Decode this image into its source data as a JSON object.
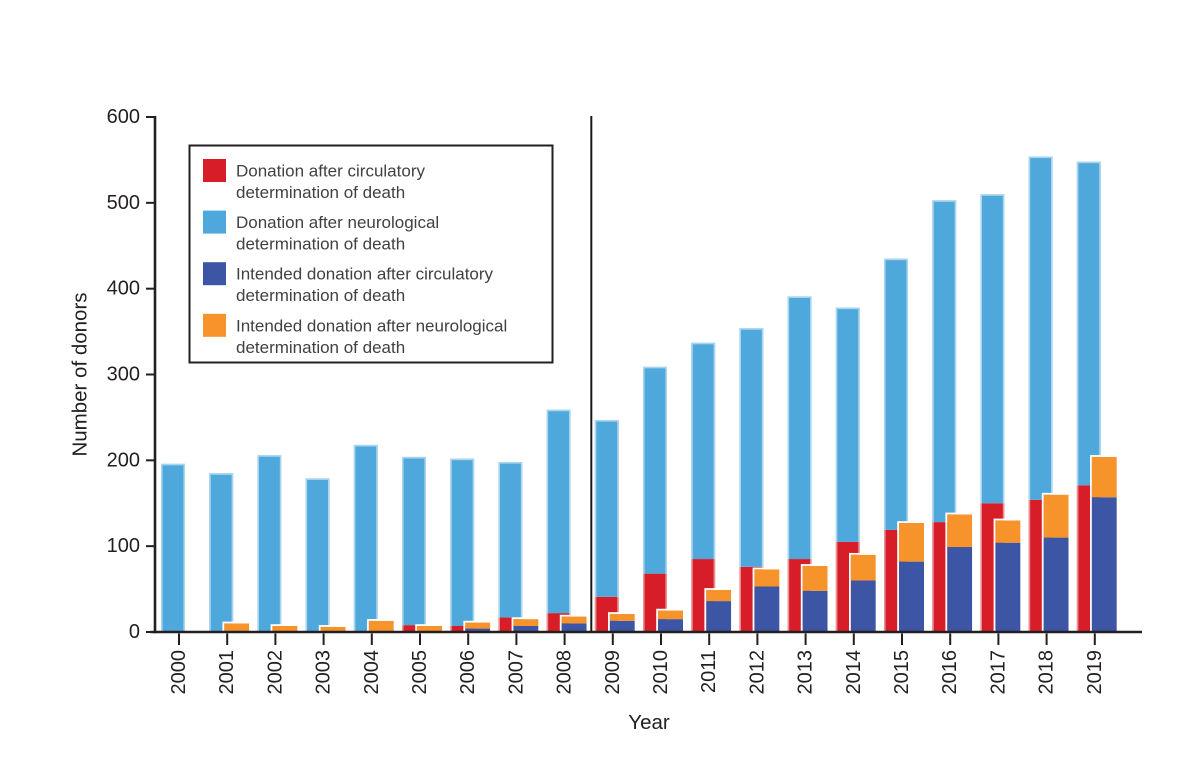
{
  "figure": {
    "background": "#ffffff",
    "text_color": "#231f20",
    "legend_text_color": "#414042"
  },
  "chart_data": {
    "type": "bar",
    "stacked": true,
    "grouped": true,
    "title": "",
    "xlabel": "Year",
    "ylabel": "Number of donors",
    "ylim": [
      0,
      600
    ],
    "yticks": [
      0,
      100,
      200,
      300,
      400,
      500,
      600
    ],
    "grid": false,
    "legend_position": "upper-left-inside",
    "categories": [
      "2000",
      "2001",
      "2002",
      "2003",
      "2004",
      "2005",
      "2006",
      "2007",
      "2008",
      "2009",
      "2010",
      "2011",
      "2012",
      "2013",
      "2014",
      "2015",
      "2016",
      "2017",
      "2018",
      "2019"
    ],
    "separator_after_year": "2008",
    "groups": [
      {
        "name": "actual-donation-bar",
        "series": [
          {
            "name": "Donation after circulatory determination of death",
            "color": "#d71e28",
            "values": [
              0,
              0,
              0,
              0,
              0,
              8,
              7,
              17,
              22,
              41,
              68,
              85,
              76,
              85,
              105,
              119,
              128,
              150,
              154,
              171
            ]
          },
          {
            "name": "Donation after neurological determination of death",
            "color": "#4fa8dc",
            "values": [
              196,
              185,
              206,
              179,
              218,
              196,
              195,
              181,
              237,
              206,
              241,
              252,
              278,
              306,
              273,
              316,
              375,
              360,
              400,
              377
            ]
          }
        ]
      },
      {
        "name": "intended-donation-bar",
        "series": [
          {
            "name": "Intended donation after circulatory determination of death",
            "color": "#3d55a5",
            "values": [
              0,
              0,
              0,
              0,
              0,
              0,
              4,
              7,
              10,
              13,
              15,
              36,
              53,
              48,
              60,
              82,
              99,
              104,
              110,
              157
            ]
          },
          {
            "name": "Intended donation after neurological determination of death",
            "color": "#f6932b",
            "values": [
              0,
              10,
              7,
              6,
              13,
              7,
              7,
              8,
              8,
              8,
              10,
              13,
              20,
              29,
              30,
              45,
              38,
              26,
              50,
              47
            ]
          }
        ]
      }
    ],
    "legend": [
      {
        "color": "#d71e28",
        "lines": [
          "Donation after circulatory",
          "determination of death"
        ]
      },
      {
        "color": "#4fa8dc",
        "lines": [
          "Donation after neurological",
          "determination of death"
        ]
      },
      {
        "color": "#3d55a5",
        "lines": [
          "Intended donation after circulatory",
          "determination of death"
        ]
      },
      {
        "color": "#f6932b",
        "lines": [
          "Intended donation after neurological",
          "determination of death"
        ]
      }
    ]
  }
}
